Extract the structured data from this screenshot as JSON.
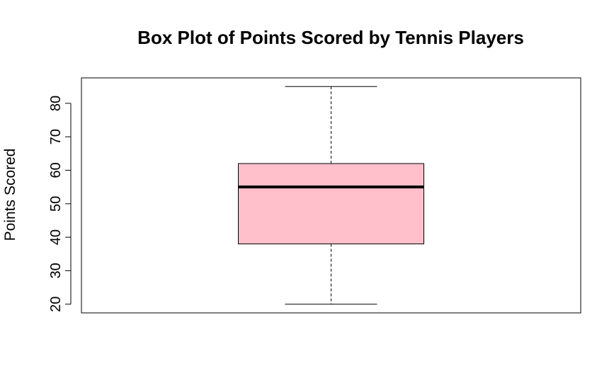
{
  "chart_data": {
    "type": "box",
    "title": "Box Plot of Points Scored by Tennis Players",
    "xlabel": "",
    "ylabel": "Points Scored",
    "ylim": [
      17.4,
      87.6
    ],
    "y_ticks": [
      20,
      30,
      40,
      50,
      60,
      70,
      80
    ],
    "y_tick_labels": [
      "20",
      "30",
      "40",
      "50",
      "60",
      "70",
      "80"
    ],
    "box": {
      "min": 20,
      "q1": 38,
      "median": 55,
      "q3": 62,
      "max": 85
    },
    "colors": {
      "box_fill": "#FFC0CB",
      "stroke": "#000000",
      "background": "#FFFFFF"
    },
    "grid": false,
    "legend": "none"
  }
}
